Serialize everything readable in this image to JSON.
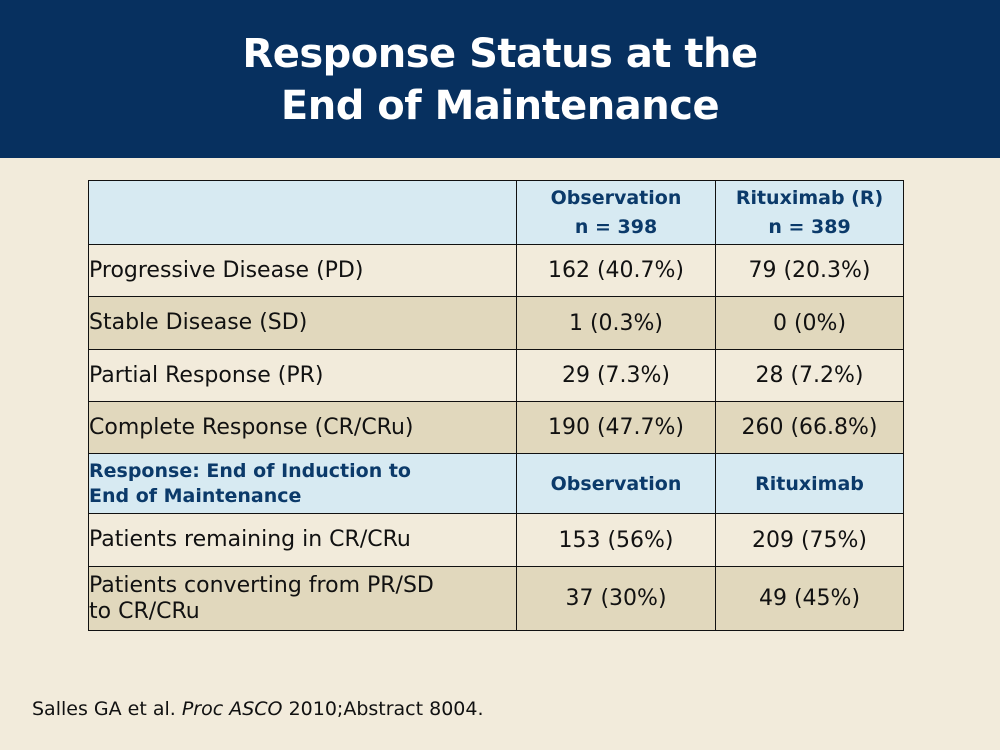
{
  "title": {
    "line1": "Response Status at the",
    "line2": "End of Maintenance"
  },
  "table": {
    "header": {
      "col1": "",
      "col2_line1": "Observation",
      "col2_line2": "n = 398",
      "col3_line1": "Rituximab (R)",
      "col3_line2": "n = 389"
    },
    "rows": [
      {
        "label": "Progressive Disease (PD)",
        "observation": "162 (40.7%)",
        "rituximab": "79 (20.3%)"
      },
      {
        "label": "Stable Disease (SD)",
        "observation": "1 (0.3%)",
        "rituximab": "0 (0%)"
      },
      {
        "label": "Partial Response (PR)",
        "observation": "29 (7.3%)",
        "rituximab": "28 (7.2%)"
      },
      {
        "label": "Complete Response (CR/CRu)",
        "observation": "190 (47.7%)",
        "rituximab": "260 (66.8%)"
      }
    ],
    "subheader": {
      "label_line1": "Response: End of Induction to",
      "label_line2": "End of Maintenance",
      "col2": "Observation",
      "col3": "Rituximab"
    },
    "rows2": [
      {
        "label_line1": "Patients remaining in CR/CRu",
        "label_line2": "",
        "observation": "153 (56%)",
        "rituximab": "209 (75%)"
      },
      {
        "label_line1": "Patients converting from PR/SD",
        "label_line2": "to CR/CRu",
        "observation": "37 (30%)",
        "rituximab": "49 (45%)"
      }
    ]
  },
  "citation": {
    "authors": "Salles GA et al.",
    "journal": "Proc ASCO",
    "rest": "2010;Abstract 8004."
  },
  "colors": {
    "title_bar": "#07305f",
    "background": "#f2ebdb",
    "header_fill": "#d7eaf2",
    "alt_row_fill": "#e1d8bd",
    "header_text": "#0b3a6a"
  }
}
